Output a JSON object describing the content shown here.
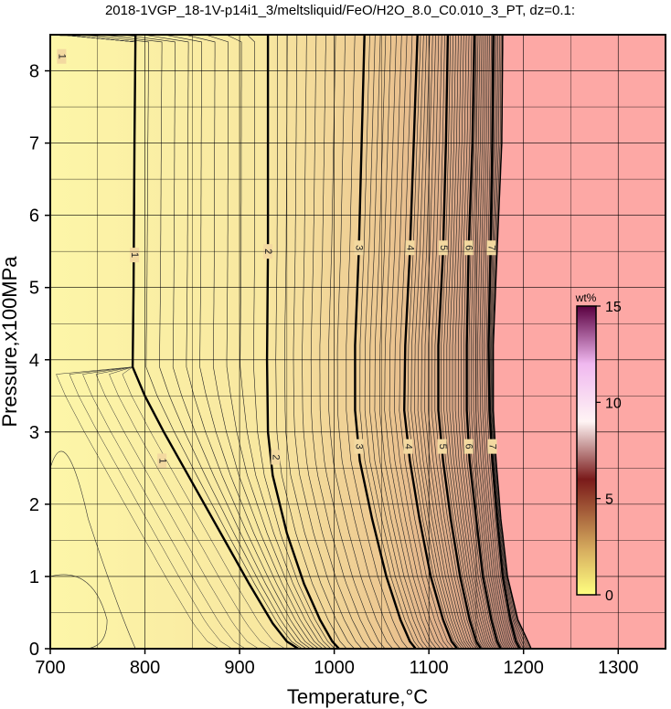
{
  "chart_data": {
    "type": "heatmap",
    "title": "2018-1VGP_18-1V-p14i1_3/meltsliquid/FeO/H2O_8.0_C0.010_3_PT, dz=0.1:",
    "xlabel": "Temperature,°C",
    "ylabel": "Pressure,x100MPa",
    "xlim": [
      700,
      1350
    ],
    "ylim": [
      0,
      8.5
    ],
    "x_ticks": [
      700,
      800,
      900,
      1000,
      1100,
      1200,
      1300
    ],
    "y_ticks": [
      0,
      1,
      2,
      3,
      4,
      5,
      6,
      7,
      8
    ],
    "grid": true,
    "colorbar": {
      "title": "wt%",
      "range": [
        0,
        15
      ],
      "ticks": [
        0,
        5,
        10,
        15
      ],
      "placement": "right-inside"
    },
    "contour_interval": 0.1,
    "major_contours": [
      {
        "level": 1,
        "points": [
          [
            710,
            8.5
          ],
          [
            790,
            8.5
          ],
          [
            789,
            7
          ],
          [
            788,
            5
          ],
          [
            787,
            3.9
          ],
          [
            800,
            3.5
          ],
          [
            820,
            3.0
          ],
          [
            850,
            2.3
          ],
          [
            880,
            1.6
          ],
          [
            910,
            0.9
          ],
          [
            935,
            0.35
          ],
          [
            950,
            0.1
          ],
          [
            962,
            0
          ]
        ],
        "labels": [
          [
            789,
            5.45
          ],
          [
            818,
            2.6
          ],
          [
            712,
            8.2
          ]
        ]
      },
      {
        "level": 2,
        "points": [
          [
            930,
            8.5
          ],
          [
            930,
            7
          ],
          [
            930,
            5.5
          ],
          [
            929,
            4.0
          ],
          [
            930,
            3.0
          ],
          [
            935,
            2.4
          ],
          [
            950,
            1.6
          ],
          [
            968,
            0.9
          ],
          [
            985,
            0.4
          ],
          [
            998,
            0.1
          ],
          [
            1005,
            0
          ]
        ],
        "labels": [
          [
            930,
            5.5
          ],
          [
            938,
            2.65
          ]
        ]
      },
      {
        "level": 3,
        "points": [
          [
            1032,
            8.5
          ],
          [
            1029,
            7
          ],
          [
            1026,
            5.5
          ],
          [
            1022,
            4.2
          ],
          [
            1022,
            3.3
          ],
          [
            1027,
            2.6
          ],
          [
            1040,
            1.8
          ],
          [
            1055,
            1.0
          ],
          [
            1070,
            0.4
          ],
          [
            1080,
            0.1
          ],
          [
            1086,
            0
          ]
        ],
        "labels": [
          [
            1026,
            5.55
          ],
          [
            1026,
            2.8
          ]
        ]
      },
      {
        "level": 4,
        "points": [
          [
            1088,
            8.5
          ],
          [
            1084,
            7
          ],
          [
            1080,
            5.5
          ],
          [
            1075,
            4.2
          ],
          [
            1074,
            3.3
          ],
          [
            1080,
            2.6
          ],
          [
            1090,
            1.8
          ],
          [
            1102,
            1.0
          ],
          [
            1115,
            0.4
          ],
          [
            1124,
            0.1
          ],
          [
            1130,
            0
          ]
        ],
        "labels": [
          [
            1080,
            5.55
          ],
          [
            1078,
            2.8
          ]
        ]
      },
      {
        "level": 5,
        "points": [
          [
            1120,
            8.5
          ],
          [
            1118,
            7
          ],
          [
            1115,
            5.5
          ],
          [
            1110,
            4.2
          ],
          [
            1110,
            3.3
          ],
          [
            1115,
            2.6
          ],
          [
            1123,
            1.8
          ],
          [
            1133,
            1.0
          ],
          [
            1143,
            0.4
          ],
          [
            1150,
            0.1
          ],
          [
            1155,
            0
          ]
        ],
        "labels": [
          [
            1115,
            5.55
          ],
          [
            1114,
            2.8
          ]
        ]
      },
      {
        "level": 6,
        "points": [
          [
            1148,
            8.5
          ],
          [
            1146,
            7
          ],
          [
            1142,
            5.5
          ],
          [
            1140,
            4.2
          ],
          [
            1140,
            3.3
          ],
          [
            1143,
            2.6
          ],
          [
            1150,
            1.8
          ],
          [
            1157,
            1.0
          ],
          [
            1166,
            0.4
          ],
          [
            1172,
            0.1
          ],
          [
            1176,
            0
          ]
        ],
        "labels": [
          [
            1142,
            5.55
          ],
          [
            1142,
            2.8
          ]
        ]
      },
      {
        "level": 7,
        "points": [
          [
            1168,
            8.5
          ],
          [
            1167,
            7
          ],
          [
            1165,
            5.5
          ],
          [
            1163,
            4.2
          ],
          [
            1164,
            3.3
          ],
          [
            1167,
            2.6
          ],
          [
            1172,
            1.8
          ],
          [
            1178,
            1.0
          ],
          [
            1186,
            0.4
          ],
          [
            1192,
            0.1
          ],
          [
            1196,
            0
          ]
        ],
        "labels": [
          [
            1166,
            5.55
          ],
          [
            1167,
            2.8
          ]
        ]
      }
    ],
    "boundary_curve": [
      [
        1178,
        8.5
      ],
      [
        1177,
        7
      ],
      [
        1172,
        5.5
      ],
      [
        1168,
        4.2
      ],
      [
        1168,
        3.3
      ],
      [
        1171,
        2.6
      ],
      [
        1176,
        1.8
      ],
      [
        1183,
        1.0
      ],
      [
        1194,
        0.4
      ],
      [
        1203,
        0.15
      ],
      [
        1208,
        0
      ]
    ]
  }
}
